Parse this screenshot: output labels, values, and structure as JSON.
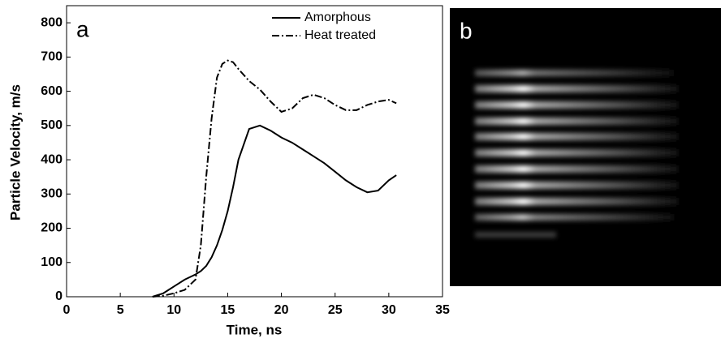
{
  "chart_data": {
    "type": "line",
    "xlabel": "Time, ns",
    "ylabel": "Particle Velocity, m/s",
    "panel_labels": [
      "a",
      "b"
    ],
    "x": [
      8,
      9,
      10,
      11,
      12,
      12.5,
      13,
      13.5,
      14,
      14.5,
      15,
      15.5,
      16,
      17,
      18,
      19,
      20,
      21,
      22,
      23,
      24,
      25,
      26,
      27,
      28,
      29,
      30,
      30.7
    ],
    "series": [
      {
        "name": "Amorphous",
        "color": "#000000",
        "dash": "solid",
        "values": [
          0,
          10,
          30,
          50,
          65,
          75,
          90,
          115,
          150,
          195,
          250,
          320,
          400,
          490,
          500,
          485,
          465,
          450,
          430,
          410,
          390,
          365,
          340,
          320,
          305,
          310,
          340,
          355
        ]
      },
      {
        "name": "Heat treated",
        "color": "#000000",
        "dash": "dashdot",
        "values": [
          0,
          3,
          10,
          20,
          50,
          150,
          350,
          520,
          640,
          680,
          690,
          685,
          665,
          630,
          605,
          570,
          540,
          550,
          580,
          590,
          580,
          560,
          545,
          545,
          560,
          570,
          575,
          565
        ]
      }
    ],
    "xlim": [
      0,
      35
    ],
    "xticks": [
      0,
      5,
      10,
      15,
      20,
      25,
      30,
      35
    ],
    "ylim": [
      0,
      850
    ],
    "yticks": [
      0,
      100,
      200,
      300,
      400,
      500,
      600,
      700,
      800
    ],
    "legend": "upper right"
  }
}
